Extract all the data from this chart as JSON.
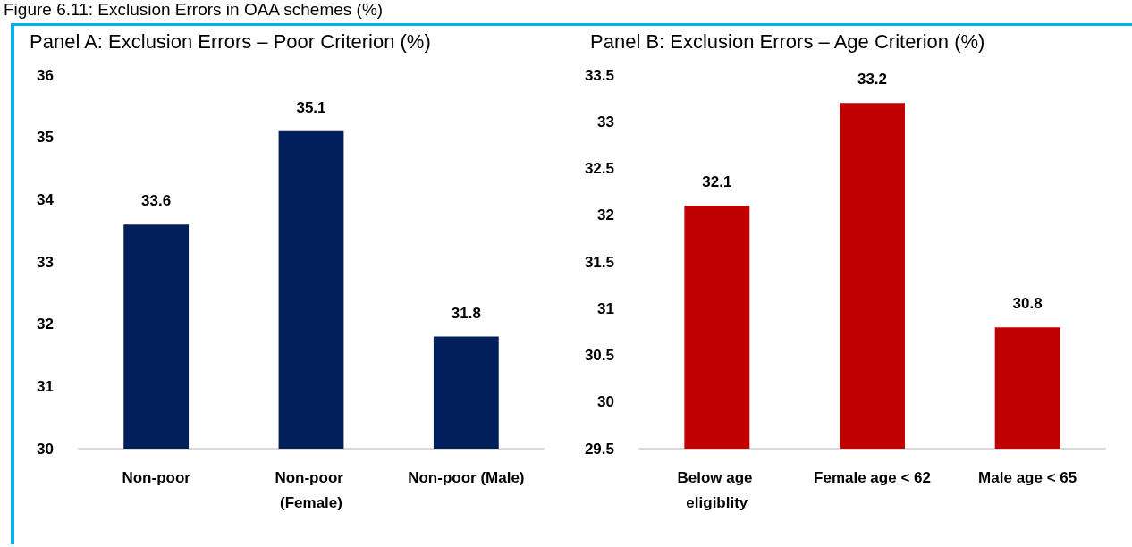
{
  "chart_data": [
    {
      "type": "bar",
      "title": "Panel A: Exclusion Errors – Poor Criterion (%)",
      "annotations": [
        "Figure 6.11: Exclusion Errors in OAA schemes (%)"
      ],
      "categories": [
        "Non-poor",
        "Non-poor (Female)",
        "Non-poor (Male)"
      ],
      "values": [
        33.6,
        35.1,
        31.8
      ],
      "colors": [
        "#001f5b",
        "#001f5b",
        "#001f5b"
      ],
      "ylim": [
        30,
        36
      ],
      "yticks": [
        30,
        31,
        32,
        33,
        34,
        35,
        36
      ],
      "grid": false,
      "data_labels": true
    },
    {
      "type": "bar",
      "title": "Panel B: Exclusion Errors – Age Criterion (%)",
      "categories": [
        "Below age eligiblity",
        "Female age < 62",
        "Male age < 65"
      ],
      "values": [
        32.1,
        33.2,
        30.8
      ],
      "colors": [
        "#c00000",
        "#c00000",
        "#c00000"
      ],
      "ylim": [
        29.5,
        33.5
      ],
      "yticks": [
        29.5,
        30,
        30.5,
        31,
        31.5,
        32,
        32.5,
        33,
        33.5
      ],
      "grid": false,
      "data_labels": true
    }
  ]
}
